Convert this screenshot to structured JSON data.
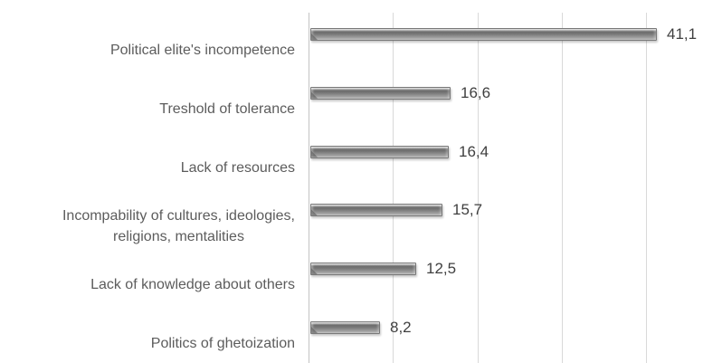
{
  "chart_data": {
    "type": "bar",
    "orientation": "horizontal",
    "title": "",
    "xlabel": "",
    "ylabel": "",
    "categories": [
      "Political elite's incompetence",
      "Treshold of tolerance",
      "Lack of resources",
      "Incompability of cultures, ideologies,\nreligions, mentalities",
      "Lack of knowledge about others",
      "Politics of ghetoization"
    ],
    "values": [
      41.1,
      16.6,
      16.4,
      15.7,
      12.5,
      8.2
    ],
    "value_labels": [
      "41,1",
      "16,6",
      "16,4",
      "15,7",
      "12,5",
      "8,2"
    ],
    "xlim": [
      0,
      48.7
    ],
    "gridlines_at": [
      0,
      10,
      20,
      30,
      40
    ],
    "grid": true,
    "legend": false,
    "data_labels_position": "outside-end",
    "colors": {
      "bar_fill": "#8c8c8c",
      "bar_border": "#787878",
      "gridline": "#d9d9d9",
      "axis_line": "#c3c3c3",
      "category_label": "#5c5c5c",
      "value_label": "#3f3f3f",
      "background": "#ffffff"
    }
  }
}
